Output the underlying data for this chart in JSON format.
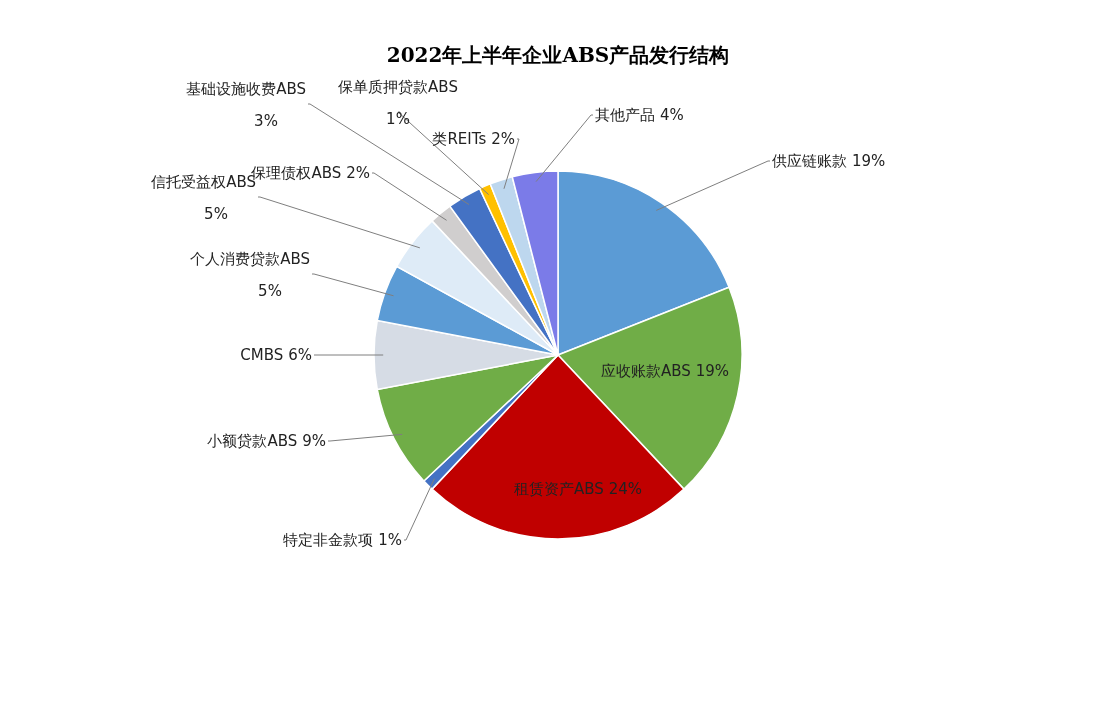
{
  "chart_data": {
    "type": "pie",
    "title": "2022年上半年企业ABS产品发行结构",
    "categories": [
      "供应链账款",
      "应收账款ABS",
      "租赁资产ABS",
      "特定非金款项",
      "小额贷款ABS",
      "CMBS",
      "个人消费贷款ABS",
      "信托受益权ABS",
      "保理债权ABS",
      "基础设施收费ABS",
      "保单质押贷款ABS",
      "类REITs",
      "其他产品"
    ],
    "values": [
      19,
      19,
      24,
      1,
      9,
      6,
      5,
      5,
      2,
      3,
      1,
      2,
      4
    ],
    "colors": [
      "#5b9bd5",
      "#70ad47",
      "#c00000",
      "#4472c4",
      "#70ad47",
      "#d6dce5",
      "#5b9bd5",
      "#deebf7",
      "#d0cece",
      "#4472c4",
      "#ffc000",
      "#bdd7ee",
      "#7b7be8"
    ],
    "value_labels": [
      "19%",
      "19%",
      "24%",
      "1%",
      "9%",
      "6%",
      "5%",
      "5%",
      "2%",
      "3%",
      "1%",
      "2%",
      "4%"
    ]
  }
}
